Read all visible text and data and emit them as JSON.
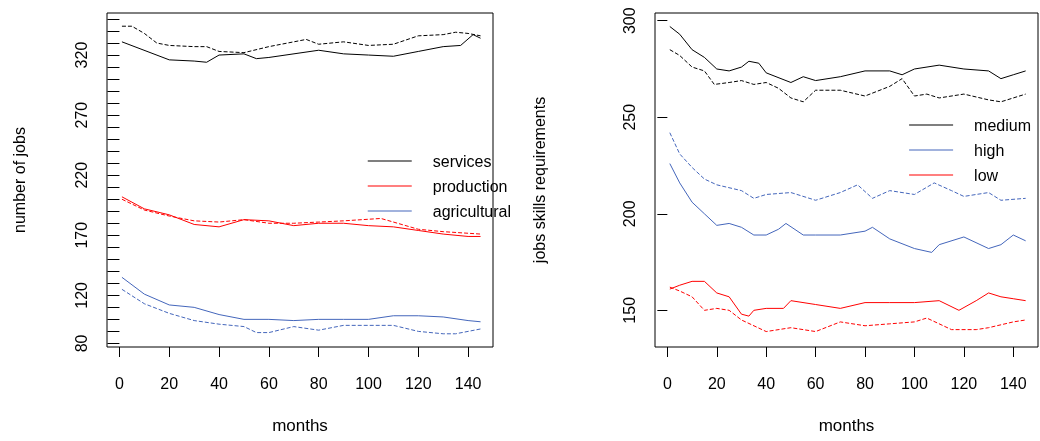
{
  "chart_data": [
    {
      "type": "line",
      "xlabel": "months",
      "ylabel": "number of jobs",
      "legend": "right",
      "xlim": [
        -5,
        150
      ],
      "ylim": [
        77,
        355
      ],
      "xticks": [
        0,
        20,
        40,
        60,
        80,
        100,
        120,
        140
      ],
      "yticks": [
        80,
        {
          "value": 90,
          "label": null
        },
        {
          "value": 100,
          "label": null
        },
        {
          "value": 110,
          "label": null
        },
        120,
        {
          "value": 130,
          "label": null
        },
        {
          "value": 140,
          "label": null
        },
        {
          "value": 150,
          "label": null
        },
        {
          "value": 160,
          "label": null
        },
        170,
        {
          "value": 180,
          "label": null
        },
        {
          "value": 190,
          "label": null
        },
        {
          "value": 200,
          "label": null
        },
        {
          "value": 210,
          "label": null
        },
        220,
        {
          "value": 230,
          "label": null
        },
        {
          "value": 240,
          "label": null
        },
        {
          "value": 250,
          "label": null
        },
        {
          "value": 260,
          "label": null
        },
        270,
        {
          "value": 280,
          "label": null
        },
        {
          "value": 290,
          "label": null
        },
        {
          "value": 300,
          "label": null
        },
        {
          "value": 310,
          "label": null
        },
        320,
        {
          "value": 330,
          "label": null
        },
        {
          "value": 340,
          "label": null
        },
        {
          "value": 350,
          "label": null
        }
      ],
      "series": [
        {
          "name": "services",
          "color": "#000000",
          "line_style": "solid",
          "x": [
            1,
            20,
            30,
            35,
            40,
            50,
            55,
            60,
            80,
            90,
            100,
            110,
            120,
            130,
            137,
            142,
            145
          ],
          "values": [
            331,
            316,
            315,
            314,
            320,
            321,
            317,
            318,
            324,
            321,
            320,
            319,
            323,
            327,
            328,
            337,
            334
          ]
        },
        {
          "color": "#000000",
          "line_style": "dashed",
          "x": [
            1,
            5,
            10,
            15,
            20,
            30,
            35,
            40,
            50,
            60,
            70,
            75,
            80,
            90,
            100,
            110,
            120,
            130,
            135,
            140,
            145
          ],
          "values": [
            344,
            344,
            338,
            330,
            328,
            327,
            327,
            323,
            322,
            327,
            331,
            333,
            329,
            331,
            328,
            329,
            336,
            337,
            339,
            338,
            336
          ]
        },
        {
          "name": "production",
          "color": "#ff0000",
          "line_style": "solid",
          "x": [
            1,
            10,
            20,
            30,
            40,
            50,
            60,
            70,
            80,
            90,
            100,
            110,
            120,
            130,
            140,
            145
          ],
          "values": [
            202,
            192,
            187,
            179,
            177,
            183,
            182,
            178,
            180,
            180,
            178,
            177,
            174,
            171,
            169,
            169
          ]
        },
        {
          "color": "#ff0000",
          "line_style": "dashed",
          "x": [
            1,
            10,
            20,
            30,
            40,
            50,
            60,
            70,
            80,
            90,
            105,
            120,
            130,
            145
          ],
          "values": [
            200,
            191,
            186,
            182,
            181,
            183,
            180,
            180,
            181,
            182,
            184,
            175,
            173,
            171
          ]
        },
        {
          "name": "agricultural",
          "color": "#4466bb",
          "line_style": "solid",
          "x": [
            1,
            10,
            20,
            30,
            40,
            50,
            60,
            70,
            80,
            90,
            100,
            110,
            120,
            130,
            140,
            145
          ],
          "values": [
            135,
            121,
            112,
            110,
            104,
            100,
            100,
            99,
            100,
            100,
            100,
            103,
            103,
            102,
            99,
            98
          ]
        },
        {
          "color": "#4466bb",
          "line_style": "dashed",
          "x": [
            1,
            10,
            20,
            30,
            40,
            50,
            55,
            60,
            70,
            80,
            90,
            100,
            110,
            120,
            130,
            135,
            145
          ],
          "values": [
            125,
            113,
            105,
            99,
            96,
            94,
            89,
            89,
            94,
            91,
            95,
            95,
            95,
            90,
            88,
            88,
            92
          ]
        }
      ]
    },
    {
      "type": "line",
      "xlabel": "months",
      "ylabel": "jobs skills requirements",
      "legend": "top right",
      "xlim": [
        -5,
        150
      ],
      "ylim": [
        131,
        304
      ],
      "xticks": [
        0,
        20,
        40,
        60,
        80,
        100,
        120,
        140
      ],
      "yticks": [
        150,
        200,
        250,
        300
      ],
      "series": [
        {
          "name": "medium",
          "color": "#000000",
          "line_style": "solid",
          "x": [
            1,
            5,
            10,
            15,
            20,
            25,
            30,
            33,
            37,
            40,
            50,
            55,
            60,
            70,
            80,
            90,
            95,
            100,
            110,
            120,
            130,
            135,
            140,
            145
          ],
          "values": [
            297,
            293,
            285,
            281,
            275,
            274,
            276,
            279,
            278,
            273,
            268,
            271,
            269,
            271,
            274,
            274,
            272,
            275,
            277,
            275,
            274,
            270,
            272,
            274
          ]
        },
        {
          "color": "#000000",
          "line_style": "dashed",
          "x": [
            1,
            5,
            10,
            15,
            19,
            25,
            30,
            35,
            40,
            45,
            50,
            55,
            60,
            70,
            80,
            90,
            95,
            100,
            105,
            110,
            120,
            130,
            135,
            145
          ],
          "values": [
            285,
            282,
            276,
            274,
            267,
            268,
            269,
            267,
            268,
            265,
            260,
            258,
            264,
            264,
            261,
            266,
            270,
            261,
            262,
            260,
            262,
            259,
            258,
            262
          ]
        },
        {
          "name": "high",
          "color": "#4466bb",
          "line_style": "solid",
          "x": [
            1,
            5,
            10,
            15,
            20,
            25,
            30,
            35,
            40,
            45,
            48,
            55,
            60,
            70,
            80,
            83,
            90,
            100,
            107,
            110,
            120,
            130,
            135,
            140,
            145
          ],
          "values": [
            226,
            216,
            206,
            200,
            194,
            195,
            193,
            189,
            189,
            192,
            195,
            189,
            189,
            189,
            191,
            193,
            187,
            182,
            180,
            184,
            188,
            182,
            184,
            189,
            186
          ]
        },
        {
          "color": "#4466bb",
          "line_style": "dashed",
          "x": [
            1,
            5,
            10,
            15,
            20,
            30,
            35,
            40,
            50,
            60,
            70,
            77,
            83,
            90,
            100,
            108,
            115,
            120,
            130,
            135,
            145
          ],
          "values": [
            242,
            231,
            224,
            218,
            215,
            212,
            208,
            210,
            211,
            207,
            211,
            215,
            208,
            212,
            210,
            216,
            212,
            209,
            211,
            207,
            208
          ]
        },
        {
          "name": "low",
          "color": "#ff0000",
          "line_style": "solid",
          "x": [
            1,
            5,
            10,
            15,
            20,
            25,
            30,
            33,
            35,
            40,
            47,
            50,
            60,
            70,
            80,
            90,
            100,
            110,
            118,
            125,
            130,
            135,
            140,
            145
          ],
          "values": [
            161,
            163,
            165,
            165,
            159,
            157,
            148,
            147,
            150,
            151,
            151,
            155,
            153,
            151,
            154,
            154,
            154,
            155,
            150,
            155,
            159,
            157,
            156,
            155
          ]
        },
        {
          "color": "#ff0000",
          "line_style": "dashed",
          "x": [
            1,
            5,
            10,
            15,
            20,
            25,
            30,
            40,
            50,
            60,
            70,
            80,
            90,
            100,
            105,
            115,
            125,
            130,
            140,
            145
          ],
          "values": [
            162,
            160,
            157,
            150,
            151,
            150,
            145,
            139,
            141,
            139,
            144,
            142,
            143,
            144,
            146,
            140,
            140,
            141,
            144,
            145
          ]
        }
      ]
    }
  ]
}
